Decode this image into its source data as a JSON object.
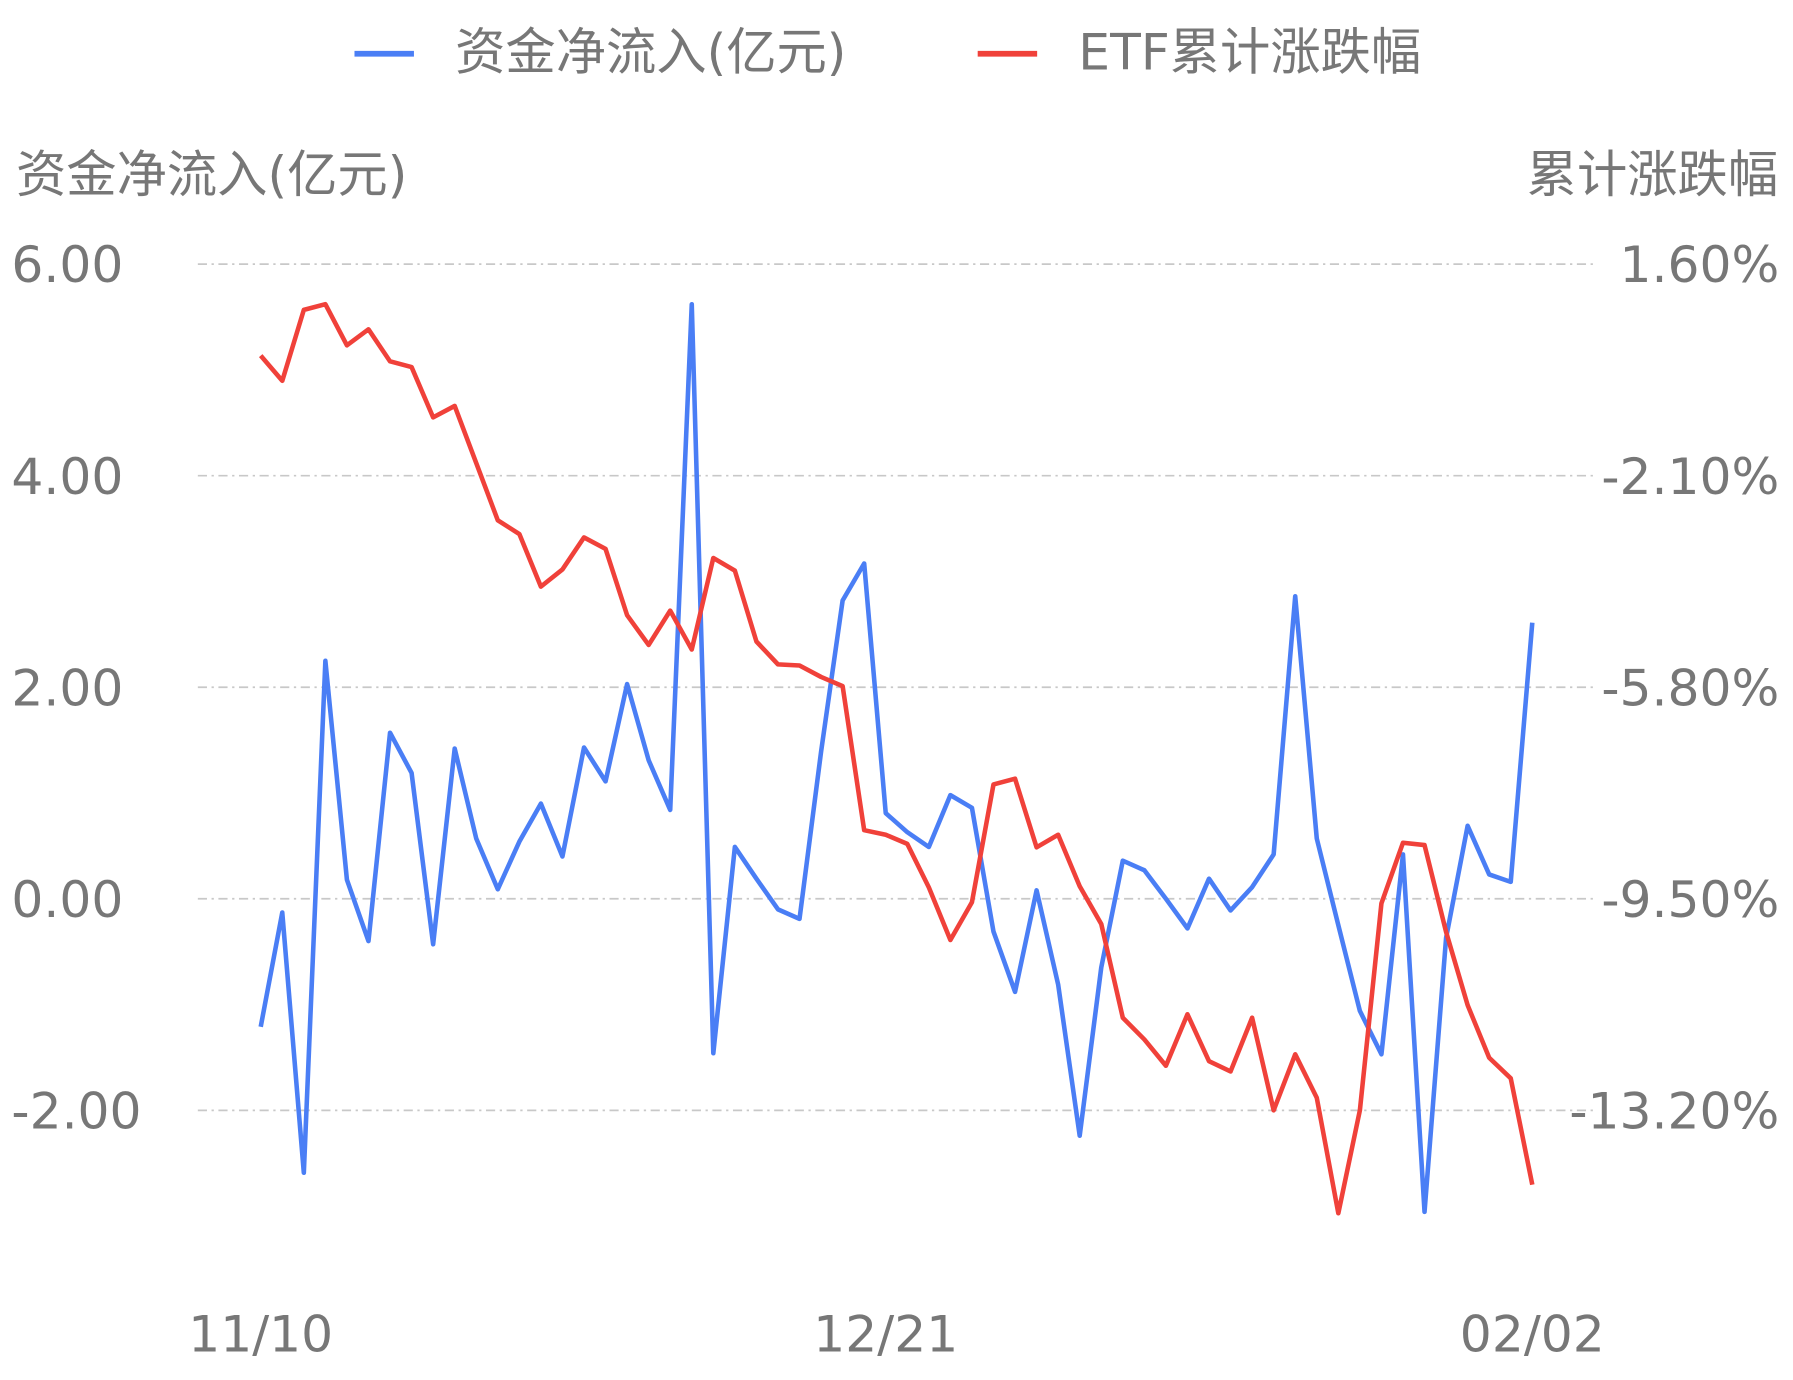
{
  "chart_data": {
    "type": "line",
    "categories": [
      "11/10",
      null,
      null,
      null,
      null,
      null,
      null,
      null,
      null,
      null,
      null,
      null,
      null,
      null,
      null,
      null,
      null,
      null,
      null,
      null,
      null,
      null,
      null,
      null,
      null,
      null,
      null,
      null,
      null,
      "12/21",
      null,
      null,
      null,
      null,
      null,
      null,
      null,
      null,
      null,
      null,
      null,
      null,
      null,
      null,
      null,
      null,
      null,
      null,
      null,
      null,
      null,
      null,
      null,
      null,
      null,
      null,
      null,
      null,
      null,
      "02/02"
    ],
    "series": [
      {
        "name": "资金净流入(亿元)",
        "color": "#4a7ef5",
        "values": [
          -1.21,
          -0.13,
          -2.59,
          2.25,
          0.18,
          -0.4,
          1.57,
          1.19,
          -0.43,
          1.42,
          0.57,
          0.09,
          0.54,
          0.9,
          0.4,
          1.43,
          1.11,
          2.03,
          1.31,
          0.84,
          5.62,
          -1.46,
          0.49,
          0.19,
          -0.1,
          -0.19,
          1.39,
          2.82,
          3.17,
          0.81,
          0.63,
          0.49,
          0.98,
          0.86,
          -0.31,
          -0.88,
          0.08,
          -0.81,
          -2.24,
          -0.65,
          0.36,
          0.27,
          0.0,
          -0.28,
          0.19,
          -0.11,
          0.11,
          0.42,
          2.86,
          0.57,
          -0.25,
          -1.06,
          -1.47,
          0.42,
          -2.96,
          -0.37,
          0.69,
          0.23,
          0.16,
          2.61
        ]
      },
      {
        "name": "ETF累计涨跌幅",
        "color": "#f0413a",
        "axis": "y2",
        "values": [
          0.0,
          -0.44,
          0.8,
          0.9,
          0.18,
          0.46,
          -0.1,
          -0.2,
          -1.08,
          -0.88,
          -1.88,
          -2.88,
          -3.12,
          -4.04,
          -3.74,
          -3.18,
          -3.38,
          -4.54,
          -5.06,
          -4.46,
          -5.14,
          -3.54,
          -3.76,
          -5.0,
          -5.4,
          -5.42,
          -5.62,
          -5.78,
          -8.3,
          -8.38,
          -8.54,
          -9.3,
          -10.22,
          -9.56,
          -7.5,
          -7.4,
          -8.6,
          -8.38,
          -9.28,
          -9.94,
          -11.58,
          -11.96,
          -12.42,
          -11.52,
          -12.34,
          -12.52,
          -11.58,
          -13.2,
          -12.22,
          -12.98,
          -15.0,
          -13.2,
          -9.58,
          -8.52,
          -8.56,
          -10.08,
          -11.36,
          -12.28,
          -12.64,
          -14.5
        ]
      }
    ],
    "y_label": "资金净流入(亿元)",
    "y2_label": "累计涨跌幅",
    "ylim": [
      -3.5,
      6
    ],
    "yticks": [
      {
        "value": 6,
        "label": "6.00"
      },
      {
        "value": 4,
        "label": "4.00"
      },
      {
        "value": 2,
        "label": "2.00"
      },
      {
        "value": 0,
        "label": "0.00"
      },
      {
        "value": -2,
        "label": "-2.00"
      }
    ],
    "y2lim": [
      -15.975,
      1.6
    ],
    "y2ticks": [
      {
        "value": 1.6,
        "label": "1.60%"
      },
      {
        "value": -2.1,
        "label": "-2.10%"
      },
      {
        "value": -5.8,
        "label": "-5.80%"
      },
      {
        "value": -9.5,
        "label": "-9.50%"
      },
      {
        "value": -13.2,
        "label": "-13.20%"
      }
    ],
    "grid": true,
    "legend": "top"
  }
}
